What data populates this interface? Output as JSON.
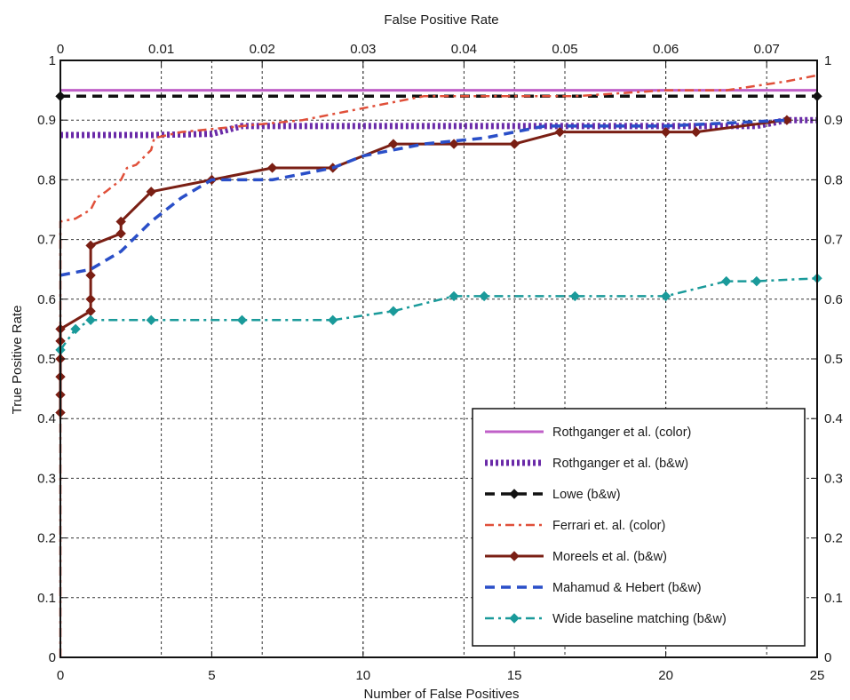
{
  "chart_data": {
    "type": "line",
    "title": "",
    "xlabel_bottom": "Number of False Positives",
    "xlabel_top": "False Positive Rate",
    "ylabel": "True Positive Rate",
    "xlim": [
      0,
      25
    ],
    "ylim": [
      0,
      1
    ],
    "top_xlim": [
      0,
      0.075
    ],
    "x_ticks": [
      "0",
      "5",
      "10",
      "15",
      "20",
      "25"
    ],
    "x_tick_values": [
      0,
      5,
      10,
      15,
      20,
      25
    ],
    "top_ticks": [
      "0",
      "0.01",
      "0.02",
      "0.03",
      "0.04",
      "0.05",
      "0.06",
      "0.07"
    ],
    "top_tick_values": [
      0,
      0.01,
      0.02,
      0.03,
      0.04,
      0.05,
      0.06,
      0.07
    ],
    "y_ticks": [
      "0",
      "0.1",
      "0.2",
      "0.3",
      "0.4",
      "0.5",
      "0.6",
      "0.7",
      "0.8",
      "0.9",
      "1"
    ],
    "y_tick_values": [
      0,
      0.1,
      0.2,
      0.3,
      0.4,
      0.5,
      0.6,
      0.7,
      0.8,
      0.9,
      1.0
    ],
    "right_y_ticks": [
      "0",
      "0.1",
      "0.2",
      "0.3",
      "0.4",
      "0.5",
      "0.6",
      "0.7",
      "0.8",
      "0.9",
      "1"
    ],
    "grid": true,
    "legend_position": "bottom-right",
    "series": [
      {
        "name": "Rothganger et al. (color)",
        "color": "#c060c8",
        "style": "solid",
        "marker": "none",
        "x": [
          0,
          25
        ],
        "y": [
          0.95,
          0.95
        ]
      },
      {
        "name": "Rothganger et al. (b&w)",
        "color": "#6a2aa8",
        "style": "dotted-thick",
        "marker": "none",
        "x": [
          0,
          1,
          3,
          5,
          6,
          10,
          15,
          20,
          23,
          24,
          25
        ],
        "y": [
          0.875,
          0.875,
          0.875,
          0.877,
          0.89,
          0.89,
          0.89,
          0.89,
          0.89,
          0.9,
          0.9
        ]
      },
      {
        "name": "Lowe (b&w)",
        "color": "#111111",
        "style": "dashed",
        "marker": "diamond",
        "x": [
          0,
          25
        ],
        "y": [
          0.94,
          0.94
        ]
      },
      {
        "name": "Ferrari et. al. (color)",
        "color": "#e0503a",
        "style": "dashdot",
        "marker": "none",
        "x": [
          0,
          0,
          0,
          0,
          0,
          0.5,
          1,
          1.2,
          1.5,
          2,
          2.2,
          2.5,
          3,
          3.1,
          4,
          5,
          6,
          8,
          10,
          12,
          15,
          17,
          20,
          22,
          24,
          25
        ],
        "y": [
          0.0,
          0.08,
          0.3,
          0.55,
          0.73,
          0.735,
          0.75,
          0.77,
          0.78,
          0.8,
          0.82,
          0.825,
          0.85,
          0.87,
          0.88,
          0.885,
          0.89,
          0.9,
          0.92,
          0.94,
          0.94,
          0.94,
          0.95,
          0.95,
          0.965,
          0.975
        ]
      },
      {
        "name": "Moreels et al. (b&w)",
        "color": "#7a1f14",
        "style": "solid",
        "marker": "diamond",
        "x": [
          0,
          0,
          0,
          0,
          0,
          0,
          1,
          1,
          1,
          1,
          2,
          2,
          3,
          5,
          7,
          9,
          11,
          13,
          15,
          16.5,
          20,
          21,
          24
        ],
        "y": [
          0.41,
          0.44,
          0.47,
          0.5,
          0.53,
          0.55,
          0.58,
          0.6,
          0.64,
          0.69,
          0.71,
          0.73,
          0.78,
          0.8,
          0.82,
          0.82,
          0.86,
          0.86,
          0.86,
          0.88,
          0.88,
          0.88,
          0.9
        ]
      },
      {
        "name": "Mahamud & Hebert (b&w)",
        "color": "#2a4fc8",
        "style": "dashed",
        "marker": "none",
        "x": [
          0,
          1,
          2,
          3,
          4,
          5,
          7,
          9,
          10,
          12,
          14,
          16,
          17,
          20,
          24
        ],
        "y": [
          0.64,
          0.65,
          0.68,
          0.73,
          0.77,
          0.8,
          0.8,
          0.82,
          0.84,
          0.86,
          0.87,
          0.89,
          0.89,
          0.89,
          0.9
        ]
      },
      {
        "name": "Wide baseline matching (b&w)",
        "color": "#1a9a9a",
        "style": "dashdot",
        "marker": "diamond",
        "x": [
          0,
          0.5,
          1,
          3,
          6,
          9,
          11,
          13,
          14,
          17,
          20,
          22,
          23,
          25
        ],
        "y": [
          0.515,
          0.55,
          0.565,
          0.565,
          0.565,
          0.565,
          0.58,
          0.605,
          0.605,
          0.605,
          0.605,
          0.63,
          0.63,
          0.635
        ]
      }
    ]
  }
}
